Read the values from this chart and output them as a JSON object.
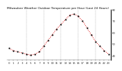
{
  "title": "Milwaukee Weather Outdoor Temperature per Hour (Last 24 Hours)",
  "hours": [
    0,
    1,
    2,
    3,
    4,
    5,
    6,
    7,
    8,
    9,
    10,
    11,
    12,
    13,
    14,
    15,
    16,
    17,
    18,
    19,
    20,
    21,
    22,
    23
  ],
  "temps": [
    46,
    44,
    43,
    42,
    41,
    40,
    41,
    43,
    48,
    53,
    58,
    63,
    67,
    71,
    75,
    76,
    74,
    70,
    64,
    58,
    52,
    48,
    44,
    41
  ],
  "line_color": "#dd0000",
  "marker_color": "#000000",
  "bg_color": "#ffffff",
  "plot_bg": "#ffffff",
  "grid_color": "#888888",
  "ylim": [
    36,
    80
  ],
  "yticks": [
    40,
    50,
    60,
    70,
    80
  ],
  "ytick_labels": [
    "40",
    "50",
    "60",
    "70",
    "80"
  ],
  "xticks": [
    0,
    1,
    2,
    3,
    4,
    5,
    6,
    7,
    8,
    9,
    10,
    11,
    12,
    13,
    14,
    15,
    16,
    17,
    18,
    19,
    20,
    21,
    22,
    23
  ],
  "title_fontsize": 3.2,
  "tick_fontsize": 2.8,
  "line_width": 0.7,
  "marker_size": 1.0
}
